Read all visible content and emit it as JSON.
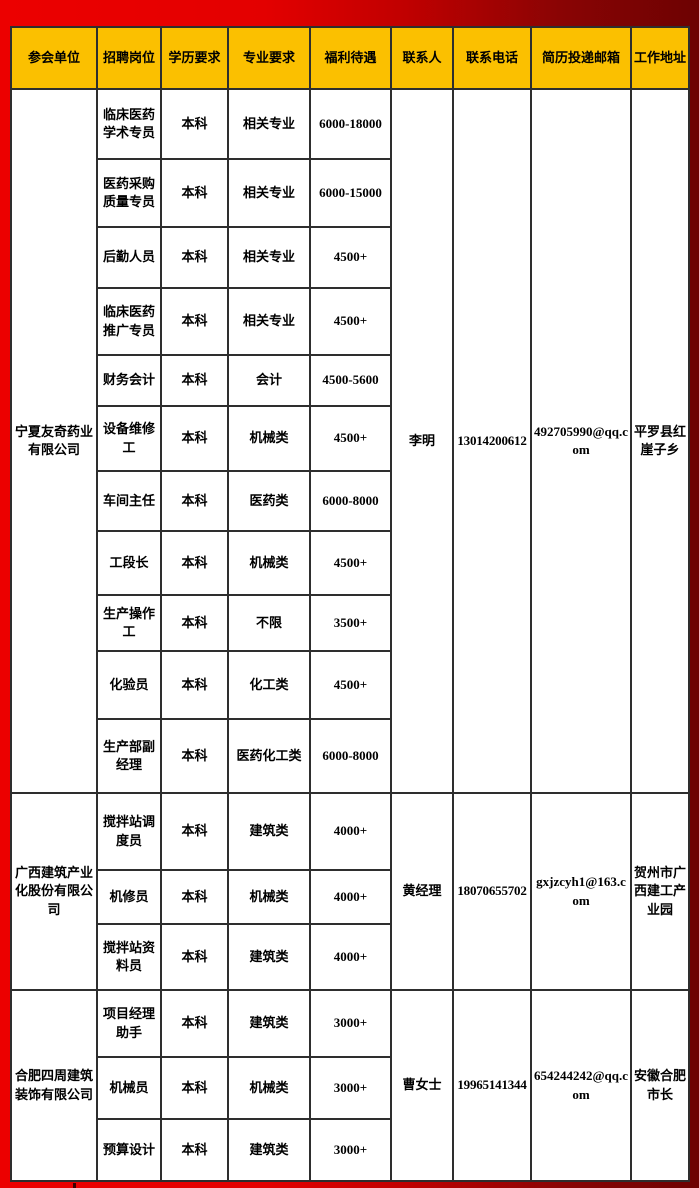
{
  "table": {
    "headers": [
      "参会单位",
      "招聘岗位",
      "学历要求",
      "专业要求",
      "福利待遇",
      "联系人",
      "联系电话",
      "简历投递邮箱",
      "工作地址"
    ],
    "groups": [
      {
        "company": "宁夏友奇药业有限公司",
        "contact": "李明",
        "phone": "13014200612",
        "email": "492705990@qq.com",
        "address": "平罗县红崖子乡",
        "rows": [
          {
            "position": "临床医药学术专员",
            "education": "本科",
            "major": "相关专业",
            "salary": "6000-18000"
          },
          {
            "position": "医药采购质量专员",
            "education": "本科",
            "major": "相关专业",
            "salary": "6000-15000"
          },
          {
            "position": "后勤人员",
            "education": "本科",
            "major": "相关专业",
            "salary": "4500+"
          },
          {
            "position": "临床医药推广专员",
            "education": "本科",
            "major": "相关专业",
            "salary": "4500+"
          },
          {
            "position": "财务会计",
            "education": "本科",
            "major": "会计",
            "salary": "4500-5600"
          },
          {
            "position": "设备维修工",
            "education": "本科",
            "major": "机械类",
            "salary": "4500+"
          },
          {
            "position": "车间主任",
            "education": "本科",
            "major": "医药类",
            "salary": "6000-8000"
          },
          {
            "position": "工段长",
            "education": "本科",
            "major": "机械类",
            "salary": "4500+"
          },
          {
            "position": "生产操作工",
            "education": "本科",
            "major": "不限",
            "salary": "3500+"
          },
          {
            "position": "化验员",
            "education": "本科",
            "major": "化工类",
            "salary": "4500+"
          },
          {
            "position": "生产部副经理",
            "education": "本科",
            "major": "医药化工类",
            "salary": "6000-8000"
          }
        ]
      },
      {
        "company": "广西建筑产业化股份有限公司",
        "contact": "黄经理",
        "phone": "18070655702",
        "email": "gxjzcyh1@163.com",
        "address": "贺州市广西建工产业园",
        "rows": [
          {
            "position": "搅拌站调度员",
            "education": "本科",
            "major": "建筑类",
            "salary": "4000+"
          },
          {
            "position": "机修员",
            "education": "本科",
            "major": "机械类",
            "salary": "4000+"
          },
          {
            "position": "搅拌站资料员",
            "education": "本科",
            "major": "建筑类",
            "salary": "4000+"
          }
        ]
      },
      {
        "company": "合肥四周建筑装饰有限公司",
        "contact": "曹女士",
        "phone": "19965141344",
        "email": "654244242@qq.com",
        "address": "安徽合肥市长",
        "rows": [
          {
            "position": "项目经理助手",
            "education": "本科",
            "major": "建筑类",
            "salary": "3000+"
          },
          {
            "position": "机械员",
            "education": "本科",
            "major": "机械类",
            "salary": "3000+"
          },
          {
            "position": "预算设计",
            "education": "本科",
            "major": "建筑类",
            "salary": "3000+"
          }
        ]
      }
    ]
  },
  "colors": {
    "header_bg": "#FBC000",
    "table_bg": "#FFFFFF",
    "grid_line": "#2E2E2E",
    "frame_red_bright": "#EC0000",
    "frame_red_dark": "#6D0202",
    "text": "#000000"
  }
}
